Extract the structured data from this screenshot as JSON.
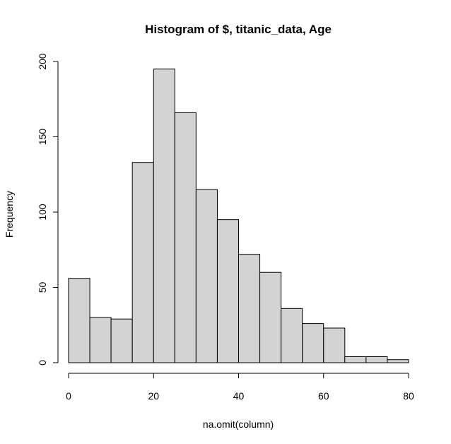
{
  "chart_data": {
    "type": "bar",
    "title": "Histogram of  $, titanic_data, Age",
    "xlabel": "na.omit(column)",
    "ylabel": "Frequency",
    "xlim": [
      0,
      80
    ],
    "ylim": [
      0,
      200
    ],
    "bin_edges": [
      0,
      5,
      10,
      15,
      20,
      25,
      30,
      35,
      40,
      45,
      50,
      55,
      60,
      65,
      70,
      75,
      80
    ],
    "values": [
      56,
      30,
      29,
      133,
      195,
      166,
      115,
      95,
      72,
      60,
      36,
      26,
      23,
      4,
      4,
      2
    ],
    "x_ticks": [
      "0",
      "20",
      "40",
      "60",
      "80"
    ],
    "y_ticks": [
      "0",
      "50",
      "100",
      "150",
      "200"
    ],
    "bar_fill": "#d3d3d3",
    "bar_stroke": "#000000",
    "grid": false
  }
}
